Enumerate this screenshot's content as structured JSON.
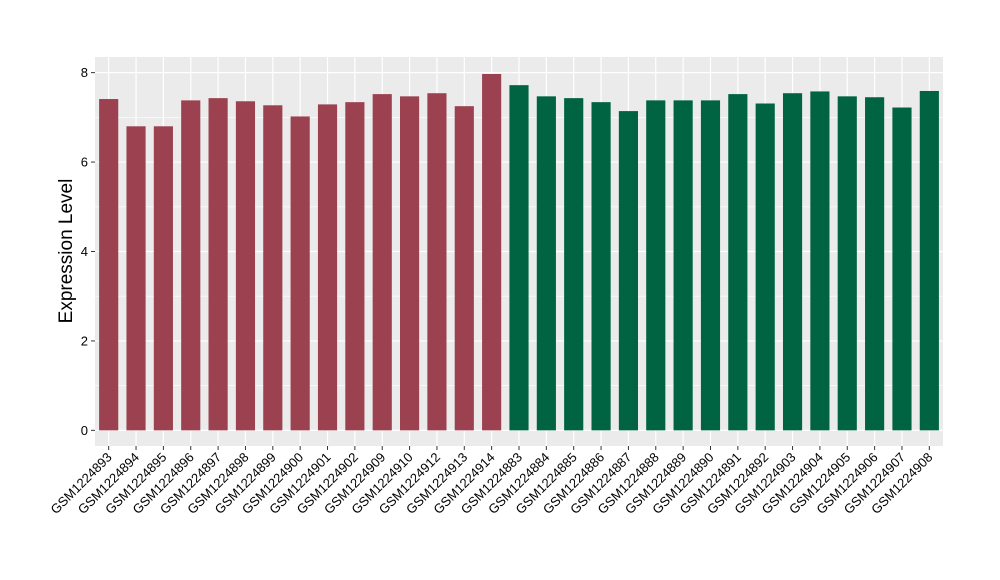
{
  "chart_data": {
    "type": "bar",
    "ylabel": "Expression Level",
    "xlabel": "",
    "ylim": [
      -0.35,
      8.35
    ],
    "yticks": [
      0,
      2,
      4,
      6,
      8
    ],
    "grid": true,
    "background": "#ebebeb",
    "colors": {
      "group1": "#9b4150",
      "group2": "#006341"
    },
    "categories": [
      "GSM1224893",
      "GSM1224894",
      "GSM1224895",
      "GSM1224896",
      "GSM1224897",
      "GSM1224898",
      "GSM1224899",
      "GSM1224900",
      "GSM1224901",
      "GSM1224902",
      "GSM1224909",
      "GSM1224910",
      "GSM1224912",
      "GSM1224913",
      "GSM1224914",
      "GSM1224883",
      "GSM1224884",
      "GSM1224885",
      "GSM1224886",
      "GSM1224887",
      "GSM1224888",
      "GSM1224889",
      "GSM1224890",
      "GSM1224891",
      "GSM1224892",
      "GSM1224903",
      "GSM1224904",
      "GSM1224905",
      "GSM1224906",
      "GSM1224907",
      "GSM1224908"
    ],
    "values": [
      7.41,
      6.8,
      6.8,
      7.38,
      7.43,
      7.36,
      7.27,
      7.02,
      7.29,
      7.34,
      7.52,
      7.47,
      7.54,
      7.25,
      7.97,
      7.72,
      7.47,
      7.43,
      7.34,
      7.14,
      7.38,
      7.38,
      7.38,
      7.52,
      7.31,
      7.54,
      7.58,
      7.47,
      7.45,
      7.22,
      7.59
    ],
    "groups": [
      1,
      1,
      1,
      1,
      1,
      1,
      1,
      1,
      1,
      1,
      1,
      1,
      1,
      1,
      1,
      2,
      2,
      2,
      2,
      2,
      2,
      2,
      2,
      2,
      2,
      2,
      2,
      2,
      2,
      2,
      2
    ]
  }
}
